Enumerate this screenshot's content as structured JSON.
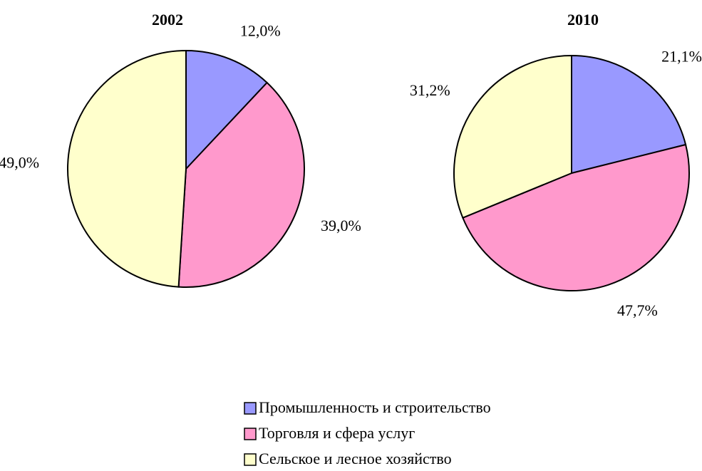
{
  "chart_data": [
    {
      "type": "pie",
      "title": "2002",
      "values": [
        12,
        39,
        49
      ],
      "value_labels": [
        "12,0%",
        "39,0%",
        "49,0%"
      ]
    },
    {
      "type": "pie",
      "title": "2010",
      "values": [
        21.1,
        47.7,
        31.2
      ],
      "value_labels": [
        "21,1%",
        "47,7%",
        "31,2%"
      ]
    }
  ],
  "legend": {
    "labels": [
      "Промышленность и строительство",
      "Торговля и сфера услуг",
      "Сельское и лесное хозяйство"
    ],
    "colors": [
      "#9999ff",
      "#ff99cc",
      "#ffffcc"
    ]
  }
}
